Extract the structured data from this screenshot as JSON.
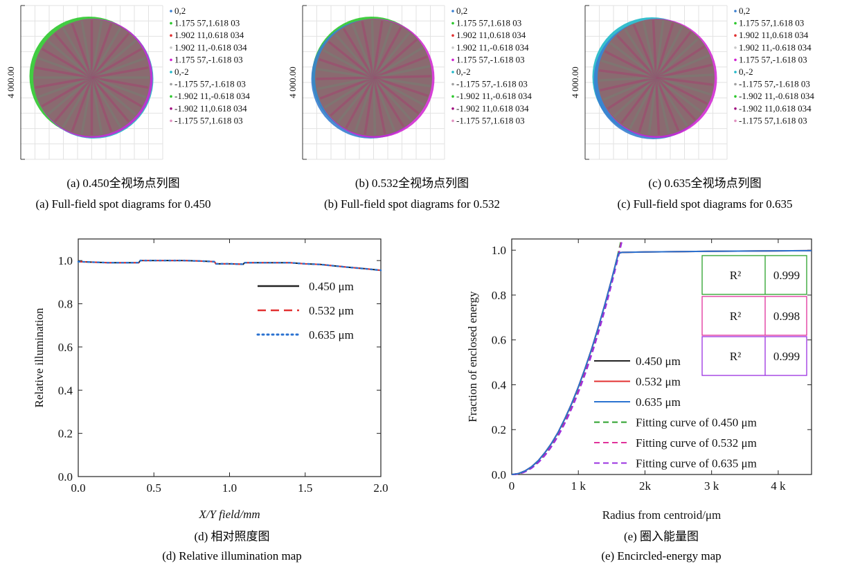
{
  "spot_legend": [
    "0,2",
    "1.175 57,1.618 03",
    "1.902 11,0.618 034",
    "1.902 11,-0.618 034",
    "1.175 57,-1.618 03",
    "0,-2",
    "-1.175 57,-1.618 03",
    "-1.902 11,-0.618 034",
    "-1.902 11,0.618 034",
    "-1.175 57,1.618 03"
  ],
  "spot_legend_colors": [
    "#3a7fd0",
    "#2dc82d",
    "#e03030",
    "#c8c8c8",
    "#d020d0",
    "#20b8c8",
    "#a0a0a0",
    "#2dc82d",
    "#a01080",
    "#e090c0"
  ],
  "spot_ylabel": "4 000.00",
  "captions": {
    "a_cn": "(a) 0.450全视场点列图",
    "a_en": "(a) Full-field spot diagrams for 0.450",
    "b_cn": "(b) 0.532全视场点列图",
    "b_en": "(b) Full-field spot diagrams for 0.532",
    "c_cn": "(c) 0.635全视场点列图",
    "c_en": "(c) Full-field spot diagrams for 0.635",
    "d_cn": "(d) 相对照度图",
    "d_en": "(d) Relative illumination map",
    "e_cn": "(e) 圈入能量图",
    "e_en": "(e) Encircled-energy map"
  },
  "chart_data": [
    {
      "type": "scatter",
      "title": "(a) Full-field spot diagrams for 0.450",
      "series_names": [
        "0,2",
        "1.175 57,1.618 03",
        "1.902 11,0.618 034",
        "1.902 11,-0.618 034",
        "1.175 57,-1.618 03",
        "0,-2",
        "-1.175 57,-1.618 03",
        "-1.902 11,-0.618 034",
        "-1.902 11,0.618 034",
        "-1.175 57,1.618 03"
      ],
      "ylabel": "4 000.00"
    },
    {
      "type": "scatter",
      "title": "(b) Full-field spot diagrams for 0.532",
      "series_names": [
        "0,2",
        "1.175 57,1.618 03",
        "1.902 11,0.618 034",
        "1.902 11,-0.618 034",
        "1.175 57,-1.618 03",
        "0,-2",
        "-1.175 57,-1.618 03",
        "-1.902 11,-0.618 034",
        "-1.902 11,0.618 034",
        "-1.175 57,1.618 03"
      ],
      "ylabel": "4 000.00"
    },
    {
      "type": "scatter",
      "title": "(c) Full-field spot diagrams for 0.635",
      "series_names": [
        "0,2",
        "1.175 57,1.618 03",
        "1.902 11,0.618 034",
        "1.902 11,-0.618 034",
        "1.175 57,-1.618 03",
        "0,-2",
        "-1.175 57,-1.618 03",
        "-1.902 11,-0.618 034",
        "-1.902 11,0.618 034",
        "-1.175 57,1.618 03"
      ],
      "ylabel": "4 000.00"
    },
    {
      "type": "line",
      "title": "(d) Relative illumination map",
      "xlabel": "X/Y field/mm",
      "ylabel": "Relative illumination",
      "xlim": [
        0,
        2.0
      ],
      "ylim": [
        0,
        1.1
      ],
      "xticks": [
        "0.0",
        "0.5",
        "1.0",
        "1.5",
        "2.0"
      ],
      "yticks": [
        "0.0",
        "0.2",
        "0.4",
        "0.6",
        "0.8",
        "1.0"
      ],
      "legend": "top-right",
      "x": [
        0,
        0.2,
        0.4,
        0.41,
        0.5,
        0.6,
        0.7,
        0.8,
        0.9,
        0.91,
        1.0,
        1.09,
        1.1,
        1.2,
        1.3,
        1.4,
        1.5,
        1.6,
        1.7,
        1.8,
        1.9,
        2.0
      ],
      "series": [
        {
          "name": "0.450 μm",
          "color": "#222222",
          "style": "solid",
          "values": [
            0.995,
            0.99,
            0.99,
            1.0,
            1.0,
            1.0,
            1.0,
            0.998,
            0.995,
            0.985,
            0.985,
            0.983,
            0.99,
            0.99,
            0.99,
            0.99,
            0.985,
            0.982,
            0.975,
            0.968,
            0.962,
            0.955
          ]
        },
        {
          "name": "0.532 μm",
          "color": "#e23030",
          "style": "dash",
          "values": [
            0.995,
            0.99,
            0.99,
            1.0,
            1.0,
            1.0,
            1.0,
            0.998,
            0.995,
            0.985,
            0.985,
            0.983,
            0.99,
            0.99,
            0.99,
            0.99,
            0.985,
            0.982,
            0.975,
            0.968,
            0.962,
            0.955
          ]
        },
        {
          "name": "0.635 μm",
          "color": "#2a72d0",
          "style": "dot",
          "values": [
            0.995,
            0.99,
            0.99,
            1.0,
            1.0,
            1.0,
            1.0,
            0.998,
            0.995,
            0.985,
            0.985,
            0.983,
            0.99,
            0.99,
            0.99,
            0.99,
            0.985,
            0.982,
            0.975,
            0.968,
            0.962,
            0.955
          ]
        }
      ]
    },
    {
      "type": "line",
      "title": "(e) Encircled-energy map",
      "xlabel": "Radius from centroid/μm",
      "ylabel": "Fraction of enclosed energy",
      "xlim": [
        0,
        4500
      ],
      "ylim": [
        0,
        1.05
      ],
      "xticks": [
        "0",
        "1 k",
        "2k",
        "3 k",
        "4 k"
      ],
      "yticks": [
        "0.0",
        "0.2",
        "0.4",
        "0.6",
        "0.8",
        "1.0"
      ],
      "legend": "bottom-center",
      "x": [
        0,
        100,
        200,
        300,
        400,
        500,
        600,
        700,
        800,
        900,
        1000,
        1100,
        1200,
        1300,
        1400,
        1500,
        1600,
        1650,
        2000,
        3000,
        4000,
        4500
      ],
      "series": [
        {
          "name": "0.450 μm",
          "color": "#222222",
          "style": "solid",
          "values": [
            0,
            0.004,
            0.016,
            0.035,
            0.062,
            0.098,
            0.14,
            0.19,
            0.25,
            0.316,
            0.39,
            0.472,
            0.56,
            0.657,
            0.76,
            0.87,
            0.985,
            0.99,
            0.992,
            0.995,
            0.997,
            0.998
          ]
        },
        {
          "name": "0.532 μm",
          "color": "#e23030",
          "style": "solid",
          "values": [
            0,
            0.004,
            0.016,
            0.035,
            0.062,
            0.098,
            0.14,
            0.19,
            0.25,
            0.316,
            0.39,
            0.472,
            0.56,
            0.657,
            0.76,
            0.87,
            0.985,
            0.99,
            0.992,
            0.995,
            0.997,
            0.998
          ]
        },
        {
          "name": "0.635 μm",
          "color": "#2a72d0",
          "style": "solid",
          "values": [
            0,
            0.004,
            0.016,
            0.035,
            0.062,
            0.098,
            0.14,
            0.19,
            0.25,
            0.316,
            0.39,
            0.472,
            0.56,
            0.657,
            0.76,
            0.87,
            0.985,
            0.99,
            0.992,
            0.995,
            0.997,
            0.998
          ]
        }
      ],
      "fits": [
        {
          "name": "Fitting curve of 0.450 μm",
          "color": "#2aa02a",
          "r2_label": "R²",
          "r2": "0.999"
        },
        {
          "name": "Fitting curve of 0.532 μm",
          "color": "#e0309a",
          "r2_label": "R²",
          "r2": "0.998"
        },
        {
          "name": "Fitting curve of 0.635 μm",
          "color": "#9a30e0",
          "r2_label": "R²",
          "r2": "0.999"
        }
      ]
    }
  ]
}
